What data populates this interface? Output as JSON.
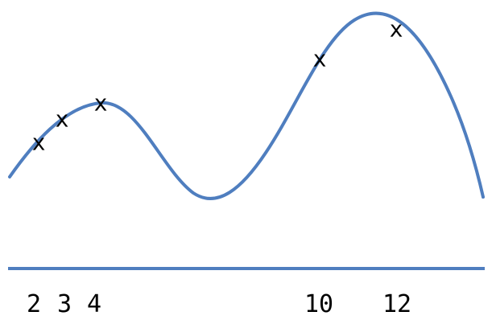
{
  "diagram": {
    "line_color": "#4f7ebf",
    "text_color": "#000000",
    "marker_symbol": "x",
    "markers": [
      {
        "id": "2",
        "symbol": "x"
      },
      {
        "id": "3",
        "symbol": "x"
      },
      {
        "id": "4",
        "symbol": "x"
      },
      {
        "id": "10",
        "symbol": "x"
      },
      {
        "id": "12",
        "symbol": "x"
      }
    ],
    "axis_labels": [
      "2",
      "3",
      "4",
      "10",
      "12"
    ]
  }
}
